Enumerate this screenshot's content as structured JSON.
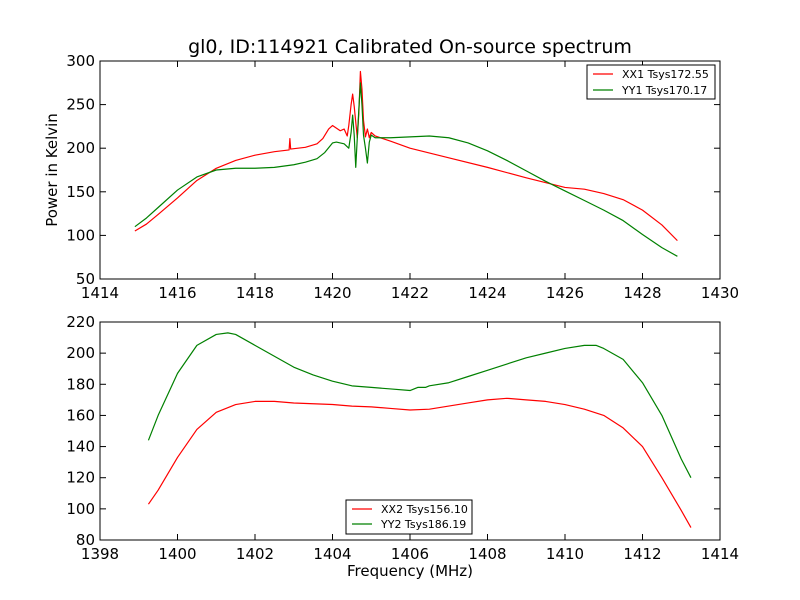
{
  "chart_data": [
    {
      "type": "line",
      "title": "gl0, ID:114921 Calibrated On-source spectrum",
      "xlabel": "",
      "ylabel": "Power in Kelvin",
      "xlim": [
        1414,
        1430
      ],
      "ylim": [
        50,
        300
      ],
      "xticks": [
        "1414",
        "1416",
        "1418",
        "1420",
        "1422",
        "1424",
        "1426",
        "1428",
        "1430"
      ],
      "yticks": [
        "50",
        "100",
        "150",
        "200",
        "250",
        "300"
      ],
      "legend_position": "top-right",
      "grid": false,
      "series": [
        {
          "name": "XX1 Tsys172.55",
          "color": "#ff0000",
          "points": [
            [
              1414.9,
              105
            ],
            [
              1415.2,
              113
            ],
            [
              1415.5,
              124
            ],
            [
              1416.0,
              143
            ],
            [
              1416.5,
              163
            ],
            [
              1417.0,
              177
            ],
            [
              1417.5,
              186
            ],
            [
              1418.0,
              192
            ],
            [
              1418.5,
              196
            ],
            [
              1418.88,
              198
            ],
            [
              1418.9,
              211
            ],
            [
              1418.92,
              199
            ],
            [
              1419.3,
              201
            ],
            [
              1419.6,
              205
            ],
            [
              1419.75,
              211
            ],
            [
              1419.9,
              222
            ],
            [
              1420.0,
              226
            ],
            [
              1420.1,
              223
            ],
            [
              1420.2,
              220
            ],
            [
              1420.3,
              222
            ],
            [
              1420.38,
              214
            ],
            [
              1420.42,
              226
            ],
            [
              1420.48,
              250
            ],
            [
              1420.52,
              262
            ],
            [
              1420.56,
              248
            ],
            [
              1420.6,
              230
            ],
            [
              1420.64,
              212
            ],
            [
              1420.68,
              240
            ],
            [
              1420.72,
              288
            ],
            [
              1420.76,
              268
            ],
            [
              1420.8,
              232
            ],
            [
              1420.85,
              213
            ],
            [
              1420.9,
              222
            ],
            [
              1420.95,
              212
            ],
            [
              1421.0,
              218
            ],
            [
              1421.1,
              214
            ],
            [
              1421.5,
              208
            ],
            [
              1422.0,
              200
            ],
            [
              1423.0,
              189
            ],
            [
              1424.0,
              178
            ],
            [
              1425.0,
              166
            ],
            [
              1426.0,
              155
            ],
            [
              1426.5,
              153
            ],
            [
              1427.0,
              148
            ],
            [
              1427.5,
              141
            ],
            [
              1428.0,
              129
            ],
            [
              1428.5,
              112
            ],
            [
              1428.9,
              94
            ]
          ]
        },
        {
          "name": "YY1 Tsys170.17",
          "color": "#008000",
          "points": [
            [
              1414.9,
              110
            ],
            [
              1415.2,
              120
            ],
            [
              1415.5,
              132
            ],
            [
              1416.0,
              152
            ],
            [
              1416.5,
              167
            ],
            [
              1417.0,
              175
            ],
            [
              1417.5,
              177
            ],
            [
              1418.0,
              177
            ],
            [
              1418.5,
              178
            ],
            [
              1419.0,
              181
            ],
            [
              1419.3,
              184
            ],
            [
              1419.6,
              188
            ],
            [
              1419.8,
              195
            ],
            [
              1420.0,
              206
            ],
            [
              1420.1,
              207
            ],
            [
              1420.3,
              205
            ],
            [
              1420.42,
              200
            ],
            [
              1420.48,
              218
            ],
            [
              1420.52,
              238
            ],
            [
              1420.56,
              215
            ],
            [
              1420.6,
              178
            ],
            [
              1420.64,
              212
            ],
            [
              1420.68,
              245
            ],
            [
              1420.72,
              275
            ],
            [
              1420.76,
              250
            ],
            [
              1420.8,
              215
            ],
            [
              1420.85,
              200
            ],
            [
              1420.9,
              183
            ],
            [
              1420.95,
              207
            ],
            [
              1421.0,
              215
            ],
            [
              1421.1,
              212
            ],
            [
              1421.5,
              212
            ],
            [
              1422.0,
              213
            ],
            [
              1422.5,
              214
            ],
            [
              1423.0,
              212
            ],
            [
              1423.5,
              206
            ],
            [
              1424.0,
              197
            ],
            [
              1424.5,
              186
            ],
            [
              1425.0,
              174
            ],
            [
              1425.5,
              162
            ],
            [
              1426.0,
              151
            ],
            [
              1426.5,
              140
            ],
            [
              1427.0,
              129
            ],
            [
              1427.5,
              117
            ],
            [
              1428.0,
              101
            ],
            [
              1428.5,
              86
            ],
            [
              1428.9,
              76
            ]
          ]
        }
      ]
    },
    {
      "type": "line",
      "title": "",
      "xlabel": "Frequency (MHz)",
      "ylabel": "",
      "xlim": [
        1398,
        1414
      ],
      "ylim": [
        80,
        220
      ],
      "xticks": [
        "1398",
        "1400",
        "1402",
        "1404",
        "1406",
        "1408",
        "1410",
        "1412",
        "1414"
      ],
      "yticks": [
        "80",
        "100",
        "120",
        "140",
        "160",
        "180",
        "200",
        "220"
      ],
      "legend_position": "bottom-center",
      "grid": false,
      "series": [
        {
          "name": "XX2 Tsys156.10",
          "color": "#ff0000",
          "points": [
            [
              1399.25,
              103
            ],
            [
              1399.5,
              112
            ],
            [
              1400.0,
              133
            ],
            [
              1400.5,
              151
            ],
            [
              1401.0,
              162
            ],
            [
              1401.5,
              167
            ],
            [
              1402.0,
              169
            ],
            [
              1402.5,
              169
            ],
            [
              1403.0,
              168
            ],
            [
              1403.5,
              167.5
            ],
            [
              1404.0,
              167
            ],
            [
              1404.5,
              166
            ],
            [
              1405.0,
              165.5
            ],
            [
              1405.5,
              164.5
            ],
            [
              1406.0,
              163.5
            ],
            [
              1406.5,
              164
            ],
            [
              1407.0,
              166
            ],
            [
              1407.5,
              168
            ],
            [
              1408.0,
              170
            ],
            [
              1408.5,
              171
            ],
            [
              1409.0,
              170
            ],
            [
              1409.5,
              169
            ],
            [
              1410.0,
              167
            ],
            [
              1410.5,
              164
            ],
            [
              1411.0,
              160
            ],
            [
              1411.5,
              152
            ],
            [
              1412.0,
              140
            ],
            [
              1412.5,
              120
            ],
            [
              1413.0,
              99
            ],
            [
              1413.25,
              88
            ]
          ]
        },
        {
          "name": "YY2 Tsys186.19",
          "color": "#008000",
          "points": [
            [
              1399.25,
              144
            ],
            [
              1399.5,
              160
            ],
            [
              1400.0,
              187
            ],
            [
              1400.5,
              205
            ],
            [
              1401.0,
              212
            ],
            [
              1401.3,
              213
            ],
            [
              1401.5,
              212
            ],
            [
              1402.0,
              205
            ],
            [
              1402.5,
              198
            ],
            [
              1403.0,
              191
            ],
            [
              1403.5,
              186
            ],
            [
              1404.0,
              182
            ],
            [
              1404.5,
              179
            ],
            [
              1405.0,
              178
            ],
            [
              1405.5,
              177
            ],
            [
              1406.0,
              176
            ],
            [
              1406.2,
              178
            ],
            [
              1406.4,
              178
            ],
            [
              1406.5,
              179
            ],
            [
              1407.0,
              181
            ],
            [
              1407.5,
              185
            ],
            [
              1408.0,
              189
            ],
            [
              1408.5,
              193
            ],
            [
              1409.0,
              197
            ],
            [
              1409.5,
              200
            ],
            [
              1410.0,
              203
            ],
            [
              1410.5,
              205
            ],
            [
              1410.8,
              205
            ],
            [
              1411.0,
              203
            ],
            [
              1411.5,
              196
            ],
            [
              1412.0,
              181
            ],
            [
              1412.5,
              160
            ],
            [
              1413.0,
              132
            ],
            [
              1413.25,
              120
            ]
          ]
        }
      ]
    }
  ]
}
